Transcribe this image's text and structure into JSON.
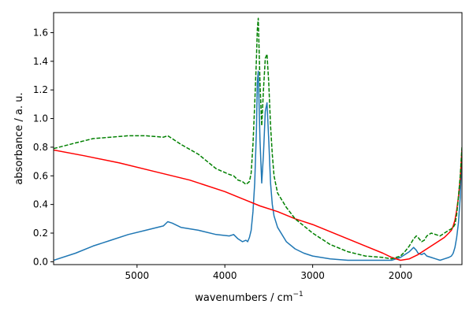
{
  "chart_data": {
    "type": "line",
    "xlabel": "wavenumbers / cm",
    "xlabel_superscript": "−1",
    "ylabel": "absorbance / a. u.",
    "xlim": [
      5950,
      1300
    ],
    "ylim": [
      -0.02,
      1.74
    ],
    "x_inverted": true,
    "grid": false,
    "legend": "none",
    "x_ticks": [
      5000,
      4000,
      3000,
      2000
    ],
    "x_tick_labels": [
      "5000",
      "4000",
      "3000",
      "2000"
    ],
    "y_ticks": [
      0.0,
      0.2,
      0.4,
      0.6,
      0.8,
      1.0,
      1.2,
      1.4,
      1.6
    ],
    "y_tick_labels": [
      "0.0",
      "0.2",
      "0.4",
      "0.6",
      "0.8",
      "1.0",
      "1.2",
      "1.4",
      "1.6"
    ],
    "series": [
      {
        "color": "#1f77b4",
        "style": "solid",
        "x": [
          5950,
          5700,
          5500,
          5300,
          5100,
          4900,
          4700,
          4650,
          4600,
          4500,
          4300,
          4100,
          3950,
          3900,
          3850,
          3800,
          3760,
          3740,
          3720,
          3700,
          3680,
          3660,
          3640,
          3630,
          3620,
          3600,
          3580,
          3560,
          3540,
          3520,
          3500,
          3480,
          3460,
          3440,
          3400,
          3300,
          3200,
          3100,
          3000,
          2800,
          2600,
          2400,
          2200,
          2100,
          2050,
          2000,
          1950,
          1900,
          1850,
          1820,
          1800,
          1760,
          1730,
          1700,
          1650,
          1600,
          1550,
          1500,
          1450,
          1420,
          1400,
          1380,
          1360,
          1340,
          1320,
          1300
        ],
        "y": [
          0.01,
          0.06,
          0.11,
          0.15,
          0.19,
          0.22,
          0.25,
          0.28,
          0.27,
          0.24,
          0.22,
          0.19,
          0.18,
          0.19,
          0.16,
          0.14,
          0.15,
          0.14,
          0.17,
          0.22,
          0.35,
          0.55,
          0.92,
          1.25,
          1.33,
          0.85,
          0.55,
          0.75,
          1.05,
          1.11,
          0.85,
          0.55,
          0.4,
          0.32,
          0.24,
          0.14,
          0.09,
          0.06,
          0.04,
          0.02,
          0.01,
          0.01,
          0.01,
          0.01,
          0.02,
          0.03,
          0.05,
          0.07,
          0.1,
          0.08,
          0.06,
          0.05,
          0.06,
          0.04,
          0.03,
          0.02,
          0.01,
          0.02,
          0.03,
          0.04,
          0.06,
          0.1,
          0.17,
          0.27,
          0.45,
          0.78
        ]
      },
      {
        "color": "#ff0000",
        "style": "solid",
        "x": [
          5950,
          5600,
          5200,
          4800,
          4400,
          4000,
          3800,
          3600,
          3400,
          3200,
          3000,
          2800,
          2600,
          2400,
          2200,
          2100,
          2000,
          1900,
          1800,
          1700,
          1600,
          1500,
          1450,
          1420,
          1400,
          1380,
          1360,
          1340,
          1320,
          1300
        ],
        "y": [
          0.78,
          0.74,
          0.69,
          0.63,
          0.57,
          0.49,
          0.44,
          0.39,
          0.35,
          0.3,
          0.26,
          0.21,
          0.16,
          0.11,
          0.06,
          0.03,
          0.01,
          0.02,
          0.05,
          0.09,
          0.13,
          0.17,
          0.2,
          0.22,
          0.25,
          0.29,
          0.36,
          0.45,
          0.58,
          0.78
        ]
      },
      {
        "color": "#008000",
        "style": "dashed",
        "x": [
          5950,
          5700,
          5500,
          5300,
          5100,
          4900,
          4700,
          4650,
          4600,
          4500,
          4300,
          4100,
          3950,
          3900,
          3850,
          3800,
          3760,
          3740,
          3720,
          3700,
          3680,
          3660,
          3640,
          3630,
          3620,
          3600,
          3580,
          3560,
          3540,
          3520,
          3500,
          3480,
          3460,
          3440,
          3400,
          3300,
          3200,
          3100,
          3000,
          2800,
          2600,
          2400,
          2200,
          2100,
          2050,
          2000,
          1950,
          1900,
          1850,
          1820,
          1800,
          1760,
          1730,
          1700,
          1650,
          1600,
          1550,
          1500,
          1450,
          1420,
          1400,
          1380,
          1360,
          1340,
          1320,
          1300
        ],
        "y": [
          0.79,
          0.83,
          0.86,
          0.87,
          0.88,
          0.88,
          0.87,
          0.88,
          0.86,
          0.82,
          0.75,
          0.65,
          0.61,
          0.6,
          0.57,
          0.56,
          0.54,
          0.55,
          0.56,
          0.62,
          0.82,
          1.1,
          1.42,
          1.62,
          1.7,
          1.25,
          0.95,
          1.2,
          1.42,
          1.45,
          1.25,
          0.95,
          0.75,
          0.6,
          0.48,
          0.38,
          0.3,
          0.25,
          0.2,
          0.12,
          0.07,
          0.04,
          0.03,
          0.02,
          0.03,
          0.04,
          0.07,
          0.11,
          0.16,
          0.18,
          0.17,
          0.14,
          0.15,
          0.18,
          0.2,
          0.19,
          0.18,
          0.2,
          0.22,
          0.23,
          0.24,
          0.26,
          0.33,
          0.45,
          0.6,
          0.8
        ]
      }
    ]
  }
}
